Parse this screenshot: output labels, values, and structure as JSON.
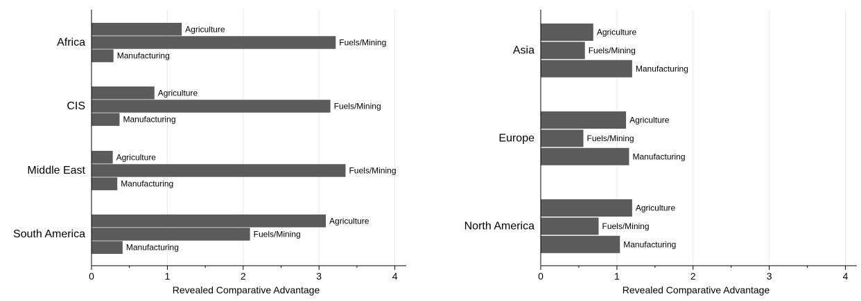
{
  "colors": {
    "bar": "#5b5b5b",
    "grid": "#e6e6e6",
    "axis": "#000000"
  },
  "chart_data": [
    {
      "type": "bar",
      "orientation": "horizontal",
      "xlabel": "Revealed Comparative Advantage",
      "xlim": [
        0,
        4.15
      ],
      "xticks": [
        0,
        1,
        2,
        3,
        4
      ],
      "grid": true,
      "groups": [
        {
          "name": "Africa",
          "bars": [
            {
              "label": "Agriculture",
              "value": 1.19
            },
            {
              "label": "Fuels/Mining",
              "value": 3.22
            },
            {
              "label": "Manufacturing",
              "value": 0.29
            }
          ]
        },
        {
          "name": "CIS",
          "bars": [
            {
              "label": "Agriculture",
              "value": 0.83
            },
            {
              "label": "Fuels/Mining",
              "value": 3.15
            },
            {
              "label": "Manufacturing",
              "value": 0.37
            }
          ]
        },
        {
          "name": "Middle East",
          "bars": [
            {
              "label": "Agriculture",
              "value": 0.28
            },
            {
              "label": "Fuels/Mining",
              "value": 3.35
            },
            {
              "label": "Manufacturing",
              "value": 0.34
            }
          ]
        },
        {
          "name": "South America",
          "bars": [
            {
              "label": "Agriculture",
              "value": 3.09
            },
            {
              "label": "Fuels/Mining",
              "value": 2.09
            },
            {
              "label": "Manufacturing",
              "value": 0.41
            }
          ]
        }
      ]
    },
    {
      "type": "bar",
      "orientation": "horizontal",
      "xlabel": "Revealed Comparative Advantage",
      "xlim": [
        0,
        4.15
      ],
      "xticks": [
        0,
        1,
        2,
        3,
        4
      ],
      "grid": true,
      "groups": [
        {
          "name": "Asia",
          "bars": [
            {
              "label": "Agriculture",
              "value": 0.69
            },
            {
              "label": "Fuels/Mining",
              "value": 0.58
            },
            {
              "label": "Manufacturing",
              "value": 1.2
            }
          ]
        },
        {
          "name": "Europe",
          "bars": [
            {
              "label": "Agriculture",
              "value": 1.12
            },
            {
              "label": "Fuels/Mining",
              "value": 0.56
            },
            {
              "label": "Manufacturing",
              "value": 1.16
            }
          ]
        },
        {
          "name": "North America",
          "bars": [
            {
              "label": "Agriculture",
              "value": 1.2
            },
            {
              "label": "Fuels/Mining",
              "value": 0.76
            },
            {
              "label": "Manufacturing",
              "value": 1.04
            }
          ]
        }
      ]
    }
  ]
}
